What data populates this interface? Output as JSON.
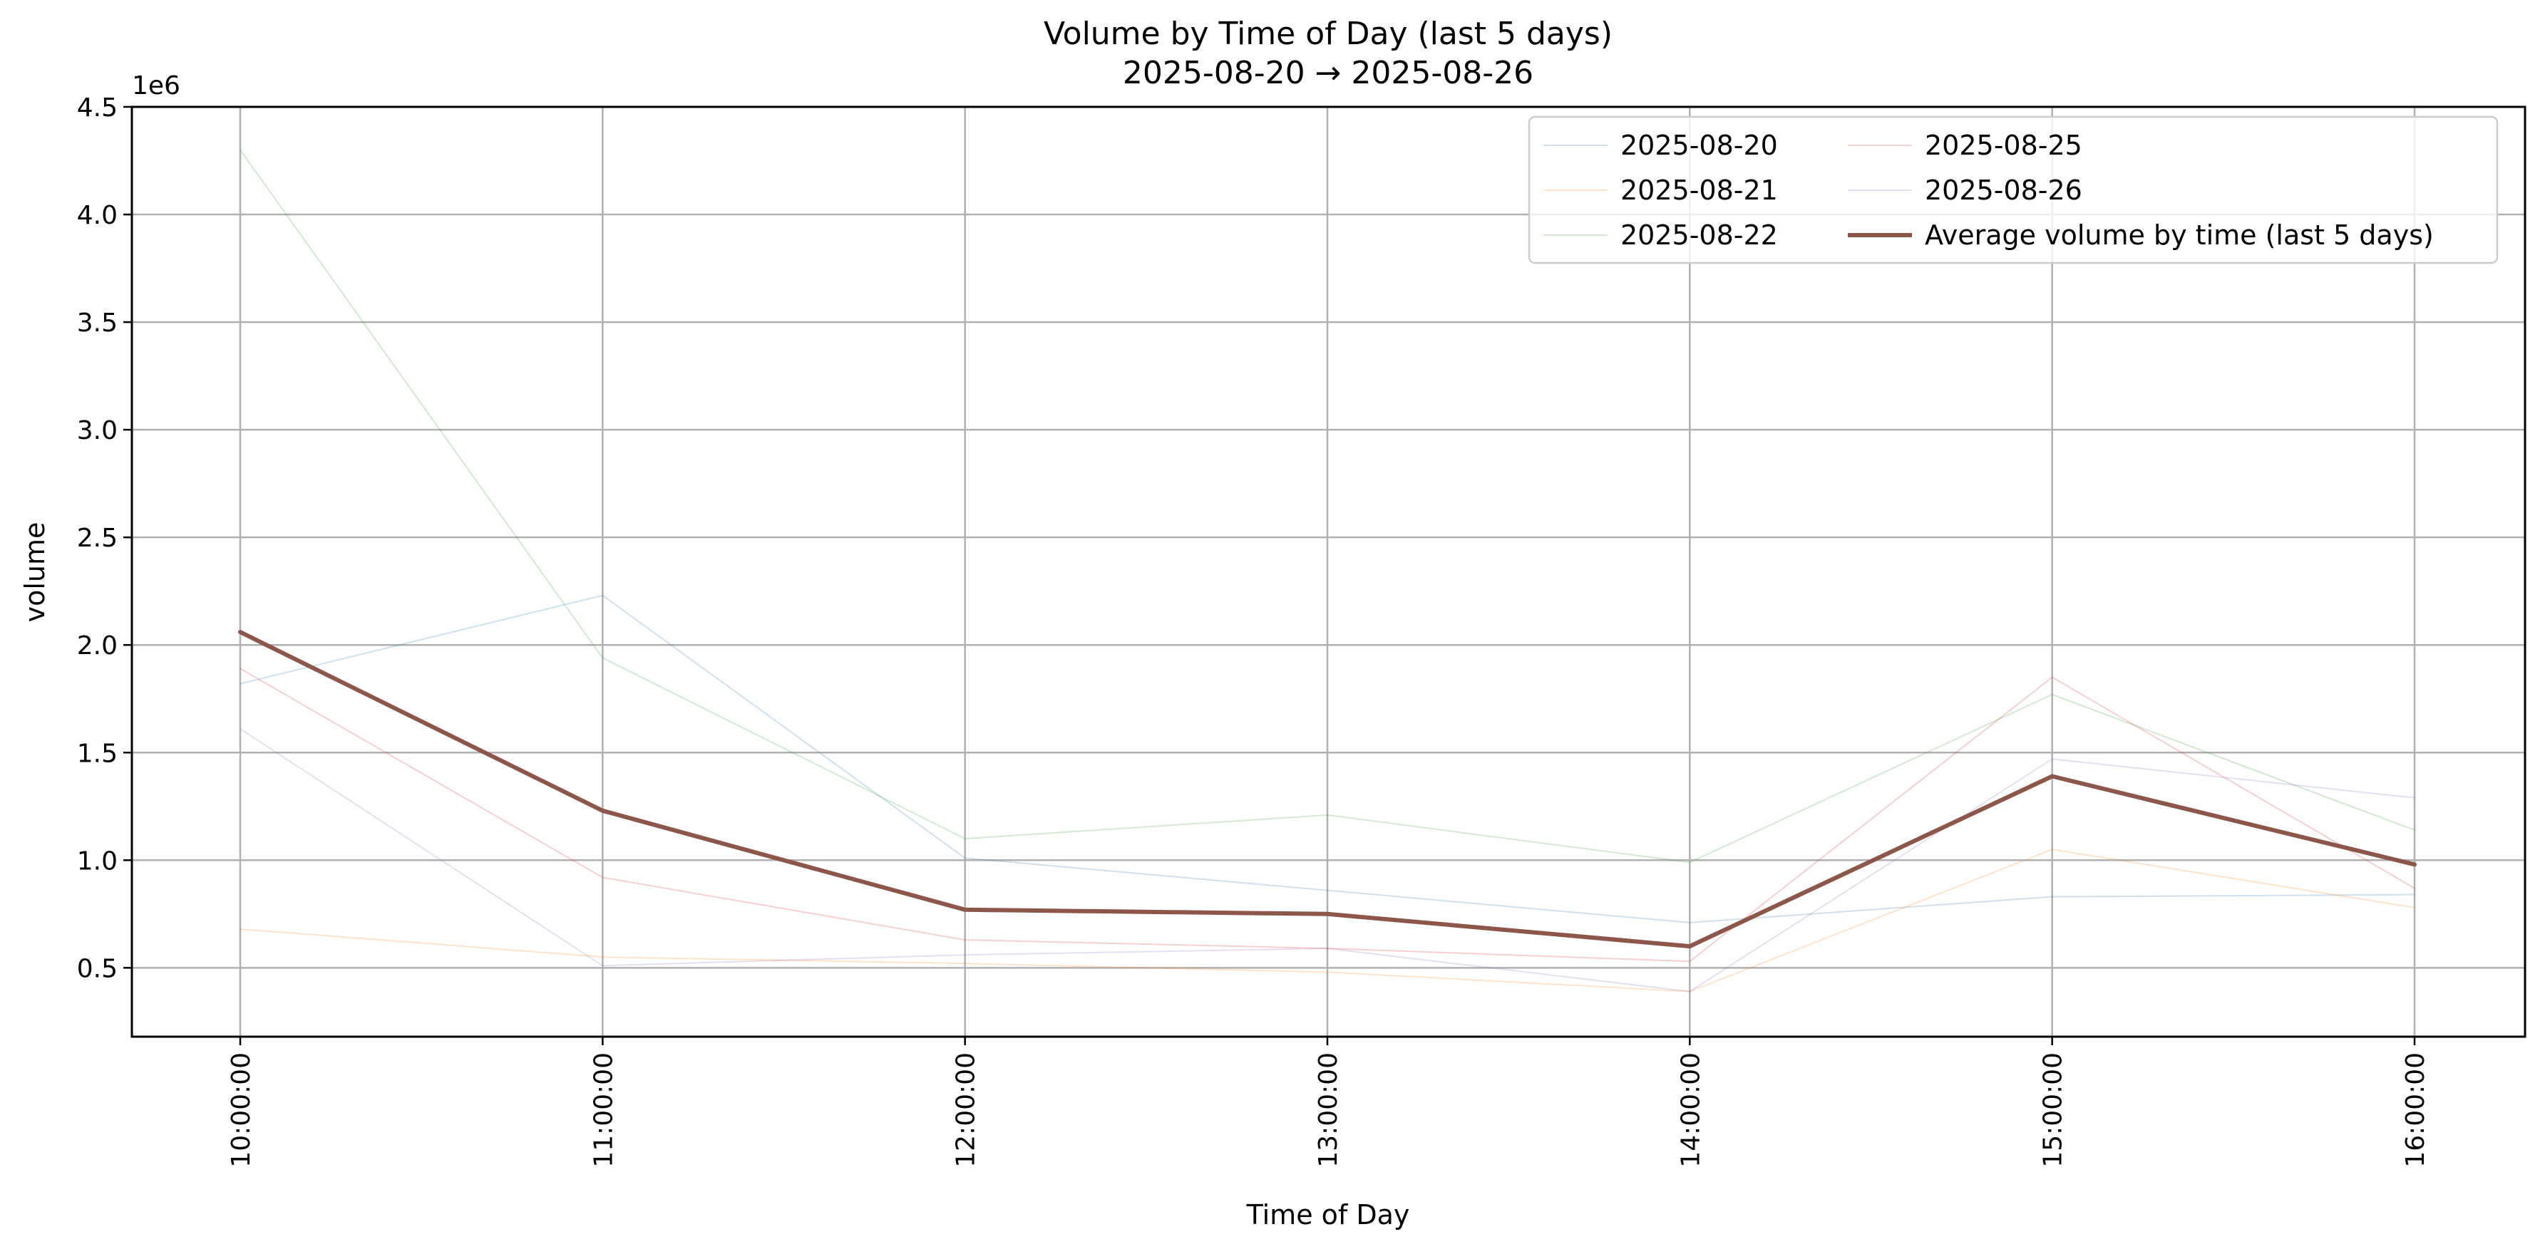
{
  "chart_data": {
    "type": "line",
    "title": "Volume by Time of Day (last 5 days)",
    "subtitle": "2025-08-20 → 2025-08-26",
    "xlabel": "Time of Day",
    "ylabel": "volume",
    "y_offset_label": "1e6",
    "categories": [
      "10:00:00",
      "11:00:00",
      "12:00:00",
      "13:00:00",
      "14:00:00",
      "15:00:00",
      "16:00:00"
    ],
    "ylim": [
      0.18,
      4.5
    ],
    "yticks": [
      0.5,
      1.0,
      1.5,
      2.0,
      2.5,
      3.0,
      3.5,
      4.0,
      4.5
    ],
    "ytick_labels": [
      "0.5",
      "1.0",
      "1.5",
      "2.0",
      "2.5",
      "3.0",
      "3.5",
      "4.0",
      "4.5"
    ],
    "y_scale_note": "values in millions (×1e6)",
    "grid": true,
    "legend_position": "top-right",
    "legend_columns": 2,
    "series": [
      {
        "name": "2025-08-20",
        "color": "#1f77b4",
        "opacity": 0.22,
        "width": 2,
        "values": [
          1.82,
          2.23,
          1.01,
          0.86,
          0.71,
          0.83,
          0.84
        ]
      },
      {
        "name": "2025-08-21",
        "color": "#ff7f0e",
        "opacity": 0.22,
        "width": 2,
        "values": [
          0.68,
          0.55,
          0.52,
          0.48,
          0.39,
          1.05,
          0.78
        ]
      },
      {
        "name": "2025-08-22",
        "color": "#2ca02c",
        "opacity": 0.22,
        "width": 2,
        "values": [
          4.3,
          1.94,
          1.1,
          1.21,
          0.99,
          1.77,
          1.14
        ]
      },
      {
        "name": "2025-08-25",
        "color": "#d62728",
        "opacity": 0.22,
        "width": 2,
        "values": [
          1.89,
          0.92,
          0.63,
          0.59,
          0.53,
          1.85,
          0.87
        ]
      },
      {
        "name": "2025-08-26",
        "color": "#9467bd",
        "opacity": 0.22,
        "width": 2,
        "values": [
          1.61,
          0.51,
          0.56,
          0.59,
          0.39,
          1.47,
          1.29
        ]
      },
      {
        "name": "Average volume by time (last 5 days)",
        "color": "#8c564b",
        "opacity": 1,
        "width": 6,
        "values": [
          2.06,
          1.23,
          0.77,
          0.75,
          0.6,
          1.39,
          0.98
        ]
      }
    ]
  }
}
